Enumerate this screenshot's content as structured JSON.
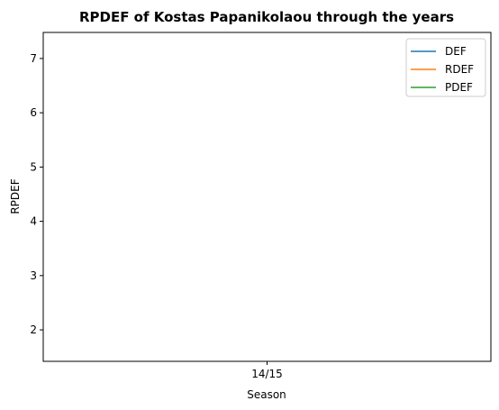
{
  "chart_data": {
    "type": "line",
    "title": "RPDEF of Kostas Papanikolaou through the years",
    "xlabel": "Season",
    "ylabel": "RPDEF",
    "categories": [
      "14/15"
    ],
    "yticks": [
      2,
      3,
      4,
      5,
      6,
      7
    ],
    "ylim": [
      1.42,
      7.48
    ],
    "grid": false,
    "legend_position": "top-right",
    "series": [
      {
        "name": "DEF",
        "color": "#1f77b4",
        "values": [
          null
        ]
      },
      {
        "name": "RDEF",
        "color": "#ff7f0e",
        "values": [
          null
        ]
      },
      {
        "name": "PDEF",
        "color": "#2ca02c",
        "values": [
          null
        ]
      }
    ]
  }
}
